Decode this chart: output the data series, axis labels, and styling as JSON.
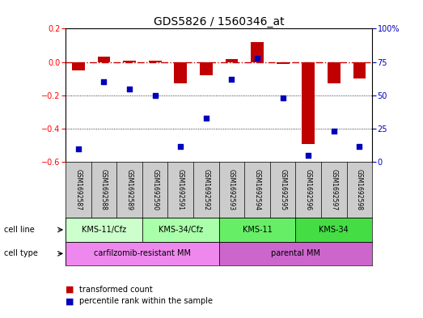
{
  "title": "GDS5826 / 1560346_at",
  "samples": [
    "GSM1692587",
    "GSM1692588",
    "GSM1692589",
    "GSM1692590",
    "GSM1692591",
    "GSM1692592",
    "GSM1692593",
    "GSM1692594",
    "GSM1692595",
    "GSM1692596",
    "GSM1692597",
    "GSM1692598"
  ],
  "transformed_count": [
    -0.05,
    0.03,
    0.01,
    0.01,
    -0.13,
    -0.08,
    0.02,
    0.12,
    -0.01,
    -0.49,
    -0.13,
    -0.1
  ],
  "percentile_rank": [
    10,
    60,
    55,
    50,
    12,
    33,
    62,
    78,
    48,
    5,
    23,
    12
  ],
  "ylim_left": [
    -0.6,
    0.2
  ],
  "ylim_right": [
    0,
    100
  ],
  "yticks_left": [
    -0.6,
    -0.4,
    -0.2,
    0.0,
    0.2
  ],
  "yticks_right": [
    0,
    25,
    50,
    75,
    100
  ],
  "hline_y": 0,
  "dotted_lines": [
    -0.2,
    -0.4
  ],
  "bar_color": "#C00000",
  "scatter_color": "#0000BB",
  "cell_line_groups": [
    {
      "label": "KMS-11/Cfz",
      "start": 0,
      "end": 3,
      "color": "#ccffcc"
    },
    {
      "label": "KMS-34/Cfz",
      "start": 3,
      "end": 6,
      "color": "#aaffaa"
    },
    {
      "label": "KMS-11",
      "start": 6,
      "end": 9,
      "color": "#66ee66"
    },
    {
      "label": "KMS-34",
      "start": 9,
      "end": 12,
      "color": "#44dd44"
    }
  ],
  "cell_type_groups": [
    {
      "label": "carfilzomib-resistant MM",
      "start": 0,
      "end": 6,
      "color": "#ee88ee"
    },
    {
      "label": "parental MM",
      "start": 6,
      "end": 12,
      "color": "#cc66cc"
    }
  ],
  "row_labels": [
    "cell line",
    "cell type"
  ],
  "legend_bar_label": "transformed count",
  "legend_scatter_label": "percentile rank within the sample",
  "bar_color_legend": "#C00000",
  "scatter_color_legend": "#0000BB",
  "bar_width": 0.5,
  "scatter_size": 18,
  "title_fontsize": 10,
  "tick_fontsize": 7,
  "label_fontsize": 7.5,
  "dashed_line_color": "#CC0000",
  "header_bg": "#cccccc",
  "background_color": "#ffffff"
}
